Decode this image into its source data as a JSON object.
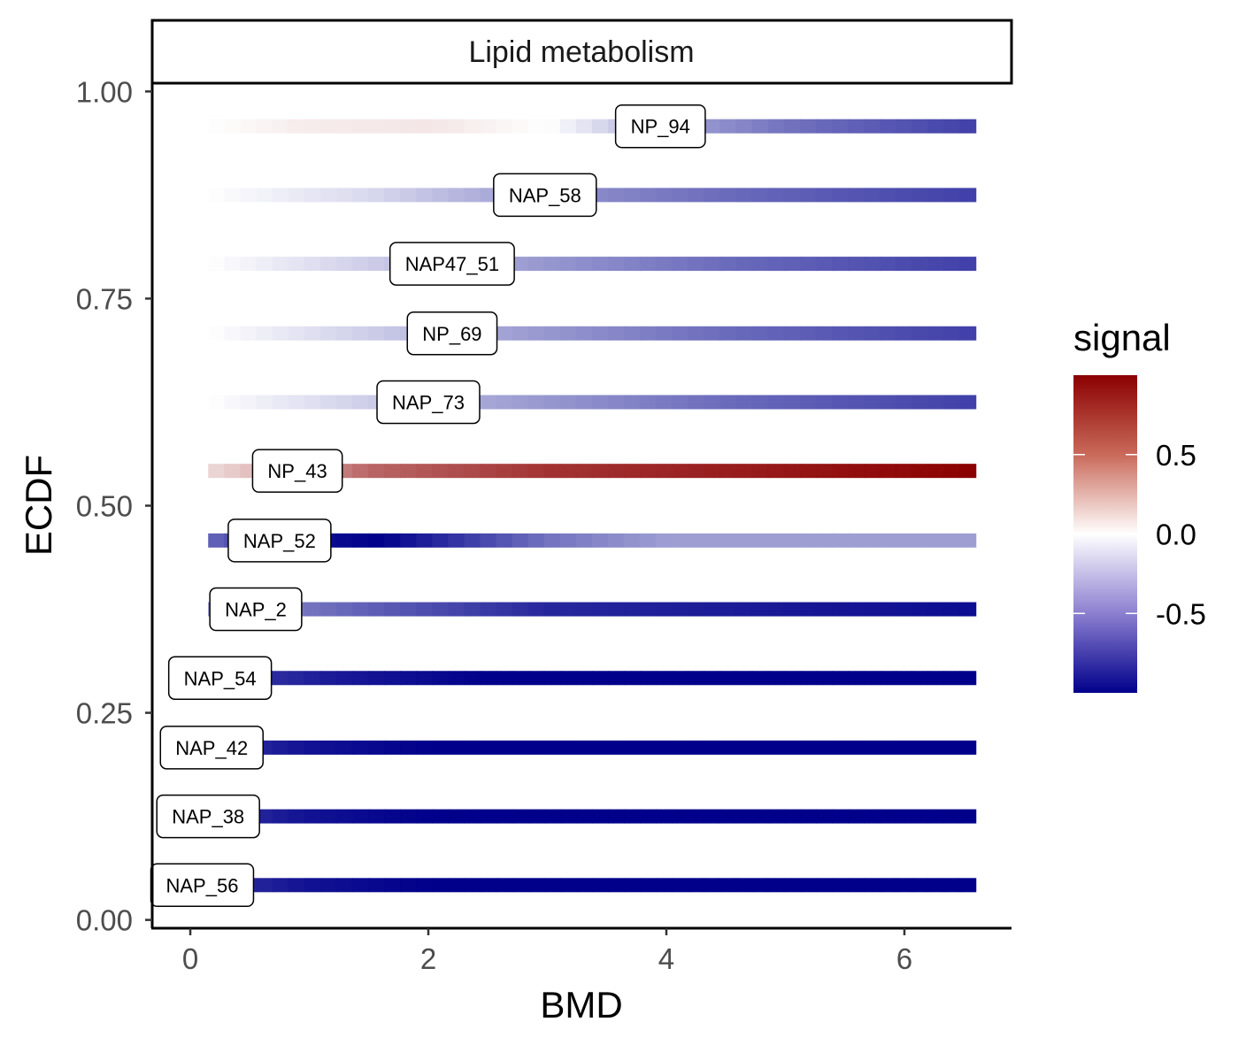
{
  "chart_data": {
    "type": "heatmap",
    "facet_title": "Lipid metabolism",
    "xlabel": "BMD",
    "ylabel": "ECDF",
    "xlim": [
      -0.32,
      6.9
    ],
    "ylim": [
      -0.01,
      1.01
    ],
    "x_ticks": [
      0,
      2,
      4,
      6
    ],
    "x_tick_labels": [
      "0",
      "2",
      "4",
      "6"
    ],
    "y_ticks": [
      0.0,
      0.25,
      0.5,
      0.75,
      1.0
    ],
    "y_tick_labels": [
      "0.00",
      "0.25",
      "0.50",
      "0.75",
      "1.00"
    ],
    "bar_x_range": [
      0.15,
      6.6
    ],
    "grid": false,
    "legend": {
      "title": "signal",
      "position": "right",
      "range": [
        -1.0,
        1.0
      ],
      "ticks": [
        0.5,
        0.0,
        -0.5
      ],
      "tick_labels": [
        "0.5",
        "0.0",
        "-0.5"
      ],
      "colors": {
        "low": "#00008b",
        "mid": "#ffffff",
        "high": "#8b0000"
      }
    },
    "series": [
      {
        "name": "NP_94",
        "ecdf": 0.958,
        "label_x": 3.95,
        "knots": [
          [
            0.15,
            0.0
          ],
          [
            0.9,
            0.07
          ],
          [
            2.0,
            0.1
          ],
          [
            3.0,
            0.0
          ],
          [
            4.0,
            -0.35
          ],
          [
            5.0,
            -0.55
          ],
          [
            6.6,
            -0.75
          ]
        ]
      },
      {
        "name": "NAP_58",
        "ecdf": 0.875,
        "label_x": 2.98,
        "knots": [
          [
            0.15,
            0.0
          ],
          [
            1.5,
            -0.15
          ],
          [
            3.0,
            -0.42
          ],
          [
            4.5,
            -0.58
          ],
          [
            6.6,
            -0.75
          ]
        ]
      },
      {
        "name": "NAP47_51",
        "ecdf": 0.792,
        "label_x": 2.2,
        "knots": [
          [
            0.15,
            0.0
          ],
          [
            1.2,
            -0.15
          ],
          [
            2.5,
            -0.35
          ],
          [
            4.5,
            -0.58
          ],
          [
            6.6,
            -0.75
          ]
        ]
      },
      {
        "name": "NP_69",
        "ecdf": 0.708,
        "label_x": 2.2,
        "knots": [
          [
            0.15,
            0.0
          ],
          [
            1.2,
            -0.15
          ],
          [
            2.5,
            -0.35
          ],
          [
            4.5,
            -0.58
          ],
          [
            6.6,
            -0.75
          ]
        ]
      },
      {
        "name": "NAP_73",
        "ecdf": 0.625,
        "label_x": 2.0,
        "knots": [
          [
            0.15,
            0.0
          ],
          [
            1.2,
            -0.15
          ],
          [
            2.5,
            -0.35
          ],
          [
            4.5,
            -0.58
          ],
          [
            6.6,
            -0.75
          ]
        ]
      },
      {
        "name": "NP_43",
        "ecdf": 0.542,
        "label_x": 0.9,
        "knots": [
          [
            0.15,
            0.15
          ],
          [
            0.7,
            0.3
          ],
          [
            1.5,
            0.6
          ],
          [
            3.0,
            0.8
          ],
          [
            6.6,
            1.0
          ]
        ]
      },
      {
        "name": "NAP_52",
        "ecdf": 0.458,
        "label_x": 0.75,
        "knots": [
          [
            0.15,
            -0.6
          ],
          [
            1.1,
            -0.95
          ],
          [
            1.6,
            -1.0
          ],
          [
            3.0,
            -0.55
          ],
          [
            4.0,
            -0.38
          ],
          [
            6.6,
            -0.38
          ]
        ]
      },
      {
        "name": "NAP_2",
        "ecdf": 0.375,
        "label_x": 0.55,
        "knots": [
          [
            0.15,
            -0.45
          ],
          [
            1.0,
            -0.55
          ],
          [
            3.0,
            -0.85
          ],
          [
            6.6,
            -0.95
          ]
        ]
      },
      {
        "name": "NAP_54",
        "ecdf": 0.292,
        "label_x": 0.25,
        "knots": [
          [
            0.15,
            -0.75
          ],
          [
            1.2,
            -0.9
          ],
          [
            2.5,
            -1.0
          ],
          [
            6.6,
            -1.0
          ]
        ]
      },
      {
        "name": "NAP_42",
        "ecdf": 0.208,
        "label_x": 0.18,
        "knots": [
          [
            0.15,
            -0.8
          ],
          [
            1.0,
            -0.93
          ],
          [
            2.0,
            -1.0
          ],
          [
            6.6,
            -1.0
          ]
        ]
      },
      {
        "name": "NAP_38",
        "ecdf": 0.125,
        "label_x": 0.15,
        "knots": [
          [
            0.15,
            -0.8
          ],
          [
            1.0,
            -0.93
          ],
          [
            2.0,
            -1.0
          ],
          [
            6.6,
            -1.0
          ]
        ]
      },
      {
        "name": "NAP_56",
        "ecdf": 0.042,
        "label_x": 0.1,
        "knots": [
          [
            0.15,
            -0.8
          ],
          [
            1.0,
            -0.93
          ],
          [
            2.0,
            -1.0
          ],
          [
            6.6,
            -1.0
          ]
        ]
      }
    ]
  }
}
